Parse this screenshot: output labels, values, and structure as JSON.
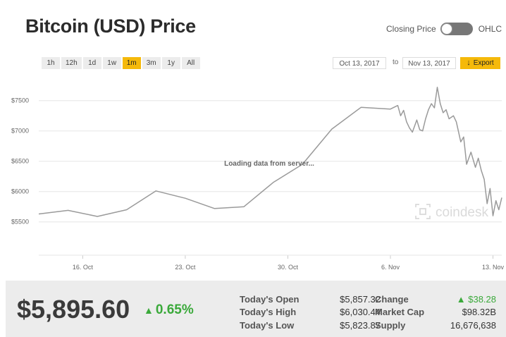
{
  "title": "Bitcoin (USD) Price",
  "toggle": {
    "left_label": "Closing Price",
    "right_label": "OHLC"
  },
  "ranges": [
    {
      "label": "1h",
      "active": false
    },
    {
      "label": "12h",
      "active": false
    },
    {
      "label": "1d",
      "active": false
    },
    {
      "label": "1w",
      "active": false
    },
    {
      "label": "1m",
      "active": true
    },
    {
      "label": "3m",
      "active": false
    },
    {
      "label": "1y",
      "active": false
    },
    {
      "label": "All",
      "active": false
    }
  ],
  "date_from": "Oct 13, 2017",
  "date_to_label": "to",
  "date_to": "Nov 13, 2017",
  "export_label": "Export",
  "accent_color": "#f5b90a",
  "line_color": "#9a9a9a",
  "loading_text": "Loading data from server...",
  "watermark": "coindesk",
  "chart_data": {
    "type": "line",
    "title": "",
    "xlabel": "",
    "ylabel": "",
    "x_ticks": [
      "16. Oct",
      "23. Oct",
      "30. Oct",
      "6. Nov",
      "13. Nov"
    ],
    "x_tick_values": [
      16,
      23,
      30,
      37,
      44
    ],
    "y_ticks": [
      "$5500",
      "$6000",
      "$6500",
      "$7000",
      "$7500"
    ],
    "y_tick_values": [
      5500,
      6000,
      6500,
      7000,
      7500
    ],
    "xlim": [
      13,
      44.6
    ],
    "ylim": [
      4950,
      7950
    ],
    "grid": true,
    "series": [
      {
        "x": [
          13,
          15,
          17,
          19,
          21,
          23,
          25,
          27,
          29,
          31,
          33,
          35,
          37,
          37.5,
          37.7,
          37.9,
          38.1,
          38.3,
          38.5,
          38.8,
          39.0,
          39.2,
          39.4,
          39.6,
          39.8,
          40.0,
          40.2,
          40.4,
          40.6,
          40.8,
          41.0,
          41.3,
          41.5,
          41.8,
          42.0,
          42.2,
          42.5,
          42.8,
          43.0,
          43.2,
          43.4,
          43.6,
          43.8,
          44.0,
          44.2,
          44.4,
          44.6
        ],
        "y": [
          5630,
          5690,
          5590,
          5700,
          6010,
          5890,
          5720,
          5750,
          6150,
          6450,
          7030,
          7390,
          7360,
          7420,
          7250,
          7340,
          7150,
          7050,
          6980,
          7180,
          7020,
          7000,
          7200,
          7350,
          7450,
          7380,
          7720,
          7450,
          7300,
          7350,
          7200,
          7250,
          7150,
          6820,
          6900,
          6450,
          6650,
          6400,
          6550,
          6350,
          6200,
          5800,
          6050,
          5600,
          5850,
          5700,
          5900
        ]
      }
    ]
  },
  "summary": {
    "price": "$5,895.60",
    "change_pct": "0.65%",
    "up_arrow": "▲",
    "today_open_label": "Today's Open",
    "today_open": "$5,857.32",
    "today_high_label": "Today's High",
    "today_high": "$6,030.44",
    "today_low_label": "Today's Low",
    "today_low": "$5,823.87",
    "change_label": "Change",
    "change_value": "$38.28",
    "market_cap_label": "Market Cap",
    "market_cap": "$98.32B",
    "supply_label": "Supply",
    "supply": "16,676,638"
  }
}
